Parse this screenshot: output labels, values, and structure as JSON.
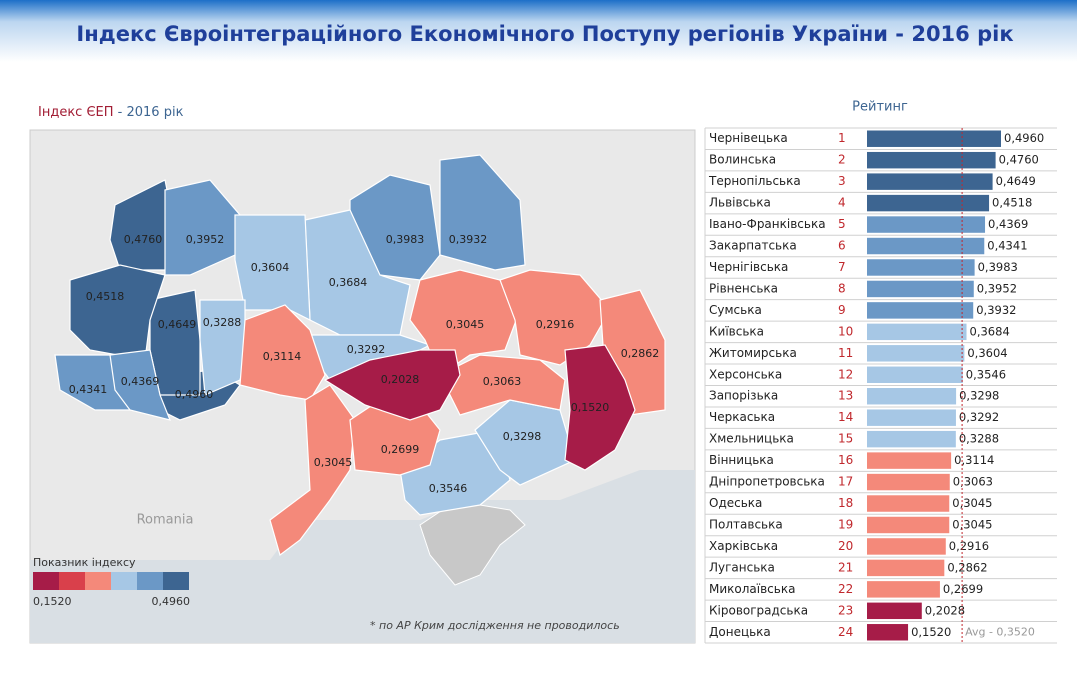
{
  "header": {
    "title": "Індекс Євроінтеграційного Економічного Поступу регіонів України - 2016 рік"
  },
  "map": {
    "title_part1": "Індекс ЄЕП",
    "title_part2": " - 2016 рік",
    "country_label": "Romania",
    "footnote": "* по АР Крим дослідження не проводилось",
    "legend": {
      "title": "Показник індексу",
      "colors": [
        "#a61c48",
        "#d9404b",
        "#f4897a",
        "#a6c7e5",
        "#6b98c6",
        "#3d6591"
      ],
      "min": {
        "value": 0.152,
        "label": "0,1520"
      },
      "max": {
        "value": 0.496,
        "label": "0,4960"
      }
    }
  },
  "chart_data": {
    "type": "bar",
    "title": "Рейтинг",
    "categories": [
      "Чернівецька",
      "Волинська",
      "Тернопільська",
      "Львівська",
      "Івано-Франківська",
      "Закарпатська",
      "Чернігівська",
      "Рівненська",
      "Сумська",
      "Київська",
      "Житомирська",
      "Херсонська",
      "Запорізька",
      "Черкаська",
      "Хмельницька",
      "Вінницька",
      "Дніпропетровська",
      "Одеська",
      "Полтавська",
      "Харківська",
      "Луганська",
      "Миколаївська",
      "Кіровоградська",
      "Донецька"
    ],
    "ranks": [
      1,
      2,
      3,
      4,
      5,
      6,
      7,
      8,
      9,
      10,
      11,
      12,
      13,
      14,
      15,
      16,
      17,
      18,
      19,
      20,
      21,
      22,
      23,
      24
    ],
    "values": [
      0.496,
      0.476,
      0.4649,
      0.4518,
      0.4369,
      0.4341,
      0.3983,
      0.3952,
      0.3932,
      0.3684,
      0.3604,
      0.3546,
      0.3298,
      0.3292,
      0.3288,
      0.3114,
      0.3063,
      0.3045,
      0.3045,
      0.2916,
      0.2862,
      0.2699,
      0.2028,
      0.152
    ],
    "value_labels": [
      "0,4960",
      "0,4760",
      "0,4649",
      "0,4518",
      "0,4369",
      "0,4341",
      "0,3983",
      "0,3952",
      "0,3932",
      "0,3684",
      "0,3604",
      "0,3546",
      "0,3298",
      "0,3292",
      "0,3288",
      "0,3114",
      "0,3063",
      "0,3045",
      "0,3045",
      "0,2916",
      "0,2862",
      "0,2699",
      "0,2028",
      "0,1520"
    ],
    "average": {
      "value": 0.352,
      "label": "Avg - 0,3520"
    }
  }
}
